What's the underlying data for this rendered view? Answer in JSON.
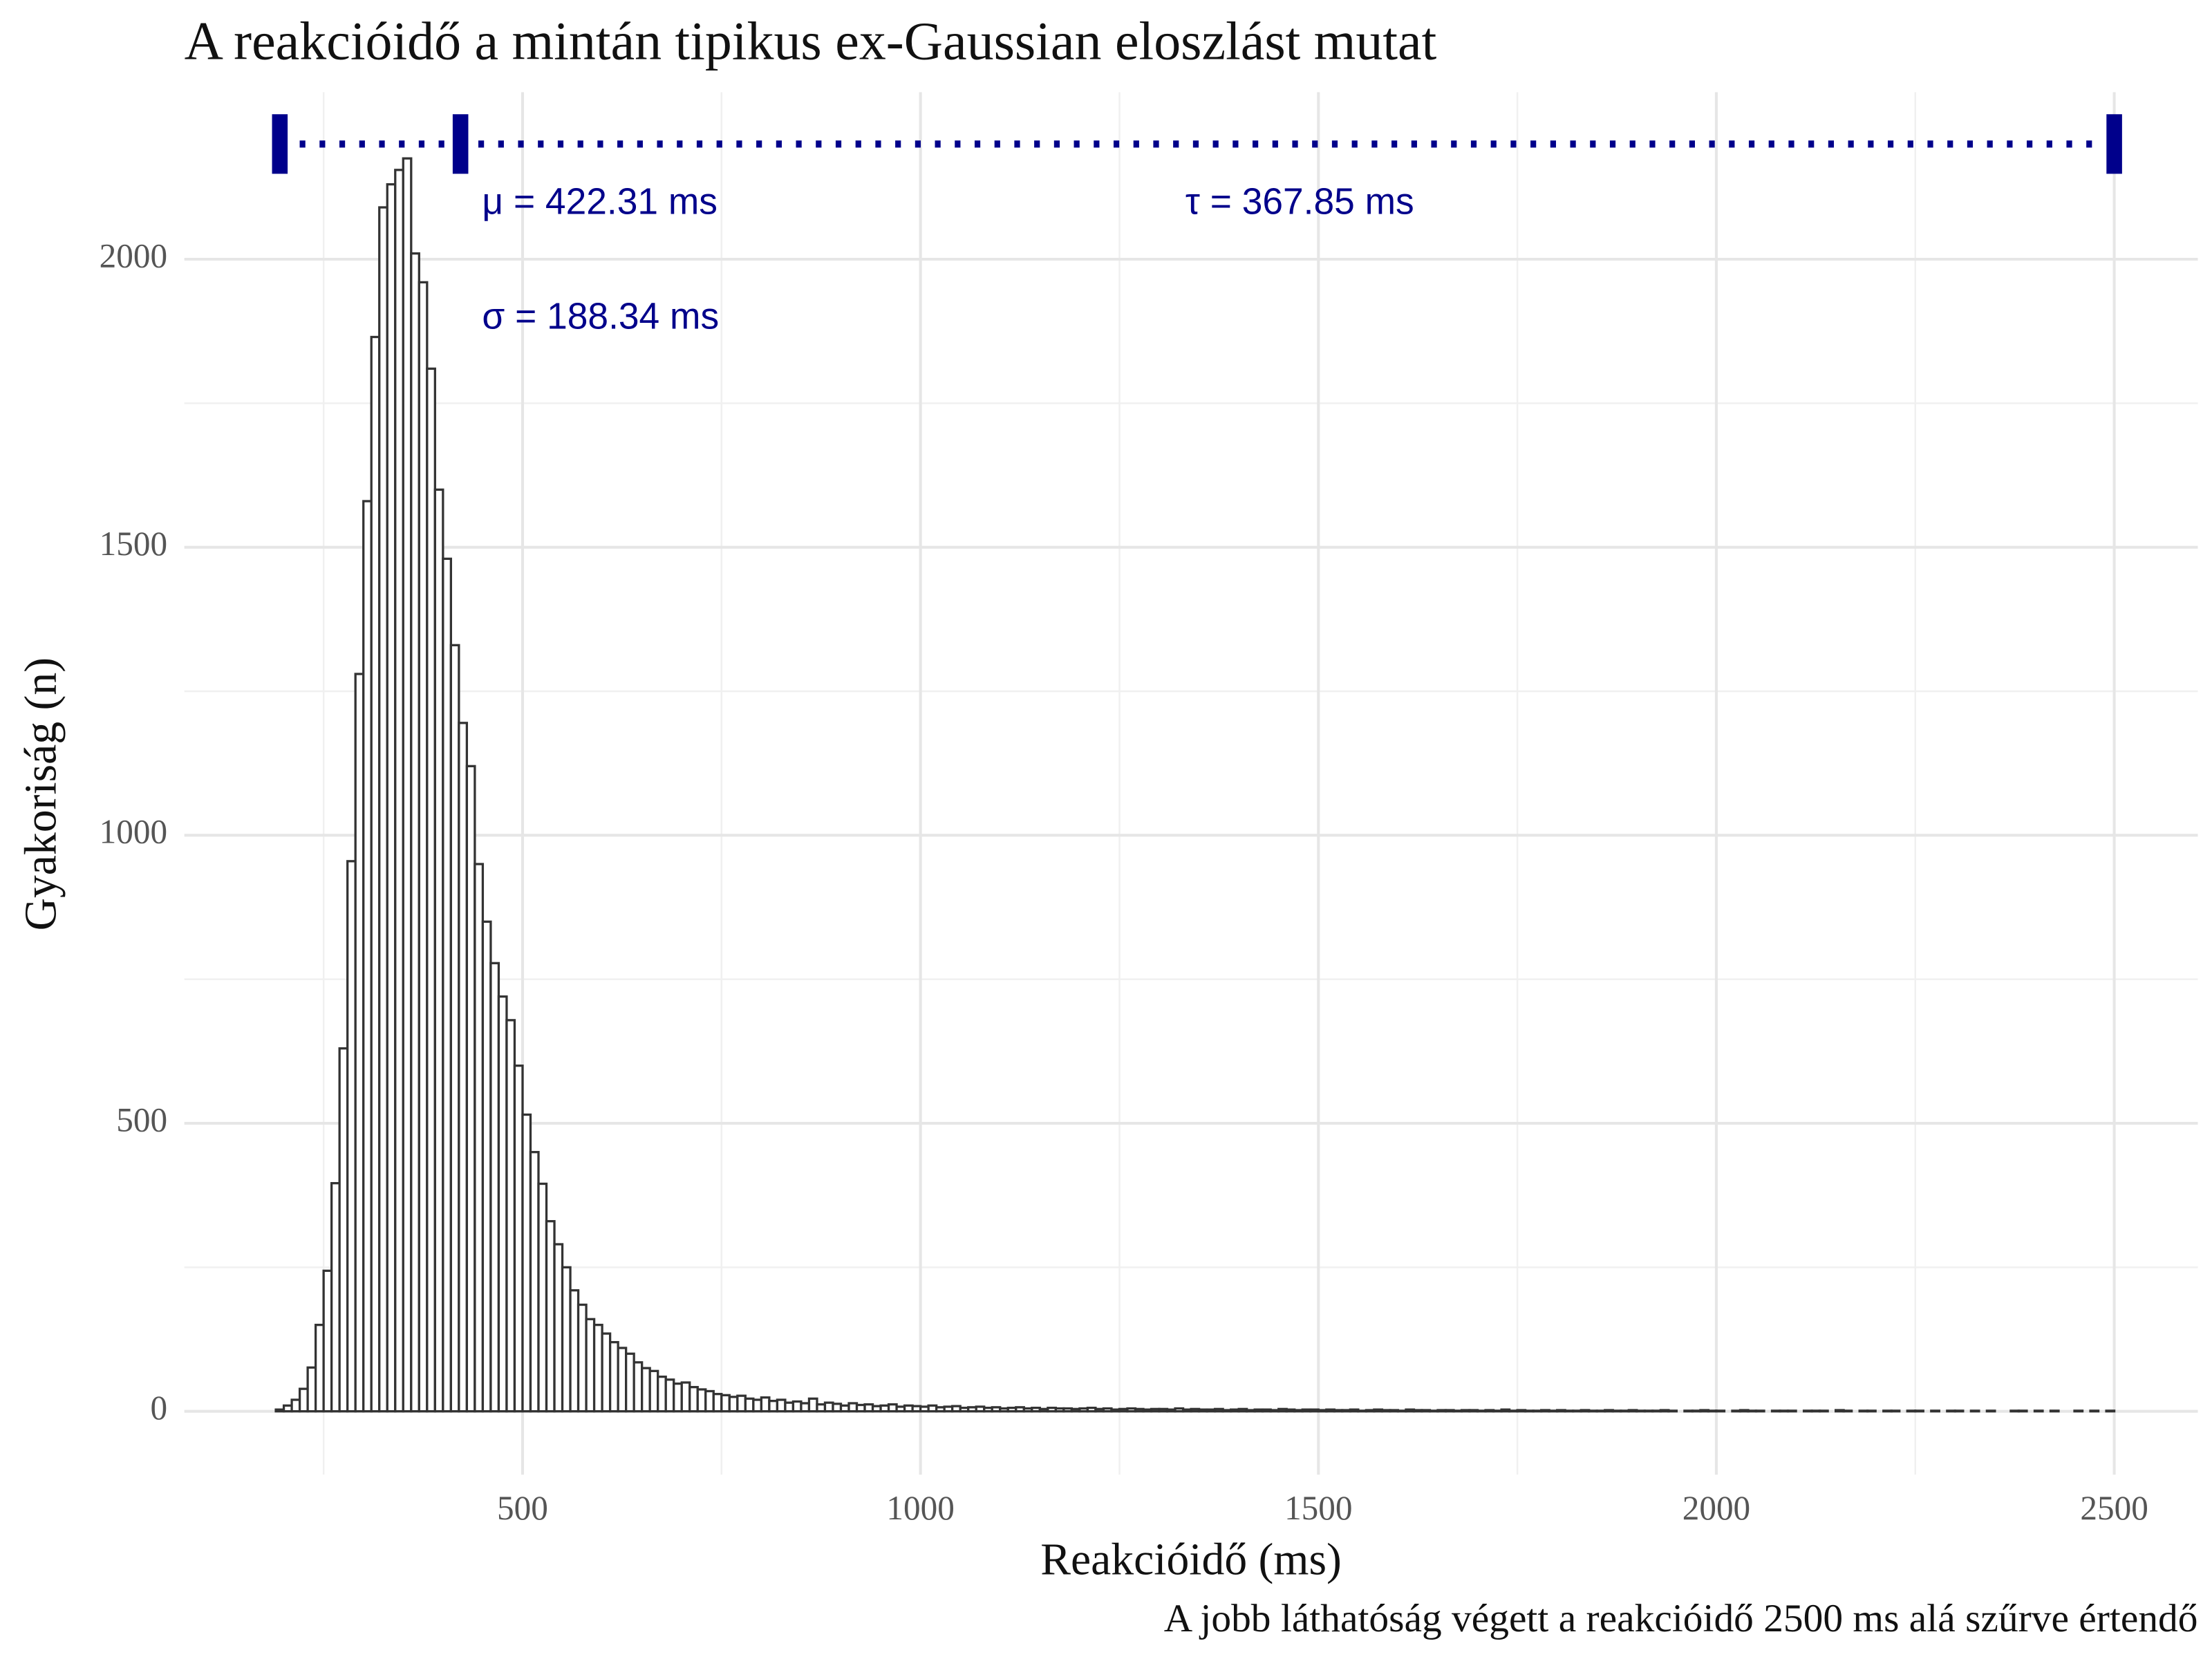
{
  "chart_data": {
    "type": "histogram",
    "title": "A reakcióidő a mintán tipikus ex-Gaussian eloszlást mutat",
    "x_label": "Reakcióidő (ms)",
    "y_label": "Gyakoriság (n)",
    "caption": "A jobb láthatóság végett a reakcióidő 2500 ms alá szűrve értendő",
    "bins": [
      190,
      200,
      210,
      220,
      230,
      240,
      250,
      260,
      270,
      280,
      290,
      300,
      310,
      320,
      330,
      340,
      350,
      360,
      370,
      380,
      390,
      400,
      410,
      420,
      430,
      440,
      450,
      460,
      470,
      480,
      490,
      500,
      510,
      520,
      530,
      540,
      550,
      560,
      570,
      580,
      590,
      600,
      610,
      620,
      630,
      640,
      650,
      660,
      670,
      680,
      690,
      700,
      710,
      720,
      730,
      740,
      750,
      760,
      770,
      780,
      790,
      800,
      810,
      820,
      830,
      840,
      850,
      860,
      870,
      880,
      890,
      900,
      910,
      920,
      930,
      940,
      950,
      960,
      970,
      980,
      990,
      1000,
      1010,
      1020,
      1030,
      1040,
      1050,
      1060,
      1070,
      1080,
      1090,
      1100,
      1110,
      1120,
      1130,
      1140,
      1150,
      1160,
      1170,
      1180,
      1190,
      1200,
      1210,
      1220,
      1230,
      1240,
      1250,
      1260,
      1270,
      1280,
      1290,
      1300,
      1310,
      1320,
      1330,
      1340,
      1350,
      1360,
      1370,
      1380,
      1390,
      1400,
      1410,
      1420,
      1430,
      1440,
      1450,
      1460,
      1470,
      1480,
      1490,
      1500,
      1510,
      1520,
      1530,
      1540,
      1550,
      1560,
      1570,
      1580,
      1590,
      1600,
      1610,
      1620,
      1630,
      1640,
      1650,
      1660,
      1670,
      1680,
      1690,
      1700,
      1710,
      1720,
      1730,
      1740,
      1750,
      1760,
      1770,
      1780,
      1790,
      1800,
      1810,
      1820,
      1830,
      1840,
      1850,
      1860,
      1870,
      1880,
      1890,
      1900,
      1910,
      1920,
      1930,
      1940,
      1950,
      1960,
      1970,
      1980,
      1990,
      2000,
      2010,
      2020,
      2030,
      2040,
      2050,
      2060,
      2070,
      2080,
      2090,
      2100,
      2110,
      2120,
      2130,
      2140,
      2150,
      2160,
      2170,
      2180,
      2190,
      2200,
      2210,
      2220,
      2230,
      2240,
      2250,
      2260,
      2270,
      2280,
      2290,
      2300,
      2310,
      2320,
      2330,
      2340,
      2350,
      2360,
      2370,
      2380,
      2390,
      2400,
      2410,
      2420,
      2430,
      2440,
      2450,
      2460,
      2470,
      2480,
      2490,
      2500
    ],
    "values": [
      3,
      10,
      20,
      39,
      76,
      150,
      244,
      396,
      630,
      955,
      1280,
      1580,
      1865,
      2090,
      2130,
      2155,
      2175,
      2010,
      1960,
      1810,
      1600,
      1480,
      1330,
      1195,
      1120,
      950,
      850,
      778,
      720,
      679,
      600,
      515,
      450,
      395,
      330,
      290,
      250,
      210,
      185,
      160,
      150,
      135,
      120,
      110,
      100,
      85,
      75,
      70,
      60,
      55,
      48,
      50,
      42,
      38,
      35,
      30,
      28,
      25,
      27,
      22,
      20,
      24,
      18,
      20,
      15,
      17,
      14,
      22,
      12,
      15,
      13,
      10,
      14,
      11,
      12,
      9,
      10,
      12,
      8,
      10,
      9,
      8,
      10,
      7,
      8,
      9,
      6,
      7,
      8,
      6,
      7,
      5,
      6,
      7,
      5,
      6,
      4,
      6,
      5,
      5,
      4,
      5,
      6,
      4,
      5,
      3,
      4,
      5,
      4,
      3,
      4,
      4,
      3,
      5,
      3,
      4,
      3,
      3,
      4,
      2,
      3,
      4,
      2,
      3,
      3,
      2,
      4,
      3,
      2,
      3,
      3,
      2,
      3,
      2,
      2,
      3,
      1,
      2,
      3,
      2,
      2,
      1,
      3,
      2,
      2,
      1,
      2,
      2,
      1,
      2,
      2,
      1,
      2,
      1,
      3,
      1,
      2,
      1,
      1,
      2,
      1,
      2,
      1,
      1,
      2,
      1,
      1,
      2,
      1,
      1,
      2,
      1,
      1,
      1,
      2,
      1,
      0,
      1,
      1,
      2,
      1,
      1,
      0,
      1,
      2,
      1,
      1,
      0,
      1,
      1,
      1,
      0,
      1,
      1,
      1,
      0,
      2,
      1,
      0,
      1,
      1,
      0,
      1,
      1,
      0,
      1,
      1,
      0,
      1,
      0,
      1,
      1,
      0,
      1,
      0,
      1,
      0,
      0,
      1,
      1,
      0,
      1,
      0,
      1,
      0,
      0,
      1,
      0,
      1,
      0,
      1
    ],
    "color": "#333333",
    "xlim": [
      75,
      2605
    ],
    "ylim": [
      -110,
      2290
    ],
    "xticks": [
      500,
      1000,
      1500,
      2000,
      2500
    ],
    "yticks": [
      0,
      500,
      1000,
      1500,
      2000
    ],
    "minor_xticks": [
      250,
      750,
      1250,
      1750,
      2250
    ],
    "minor_yticks": [
      250,
      750,
      1250,
      1750
    ],
    "grid": true,
    "annotation": {
      "color": "#00008b",
      "markers": [
        195,
        422,
        2500
      ],
      "level": 2200,
      "labels": [
        "μ = 422.31 ms",
        "σ = 188.34 ms",
        "τ = 367.85 ms"
      ]
    }
  }
}
